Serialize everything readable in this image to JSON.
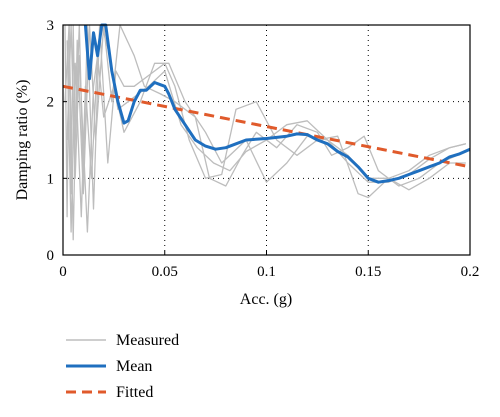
{
  "chart_data": {
    "type": "line",
    "xlabel": "Acc. (g)",
    "ylabel": "Damping ratio (%)",
    "xlim": [
      0,
      0.2
    ],
    "ylim": [
      0,
      3
    ],
    "xticks": [
      0,
      0.05,
      0.1,
      0.15,
      0.2
    ],
    "xtick_labels": [
      "0",
      "0.05",
      "0.1",
      "0.15",
      "0.2"
    ],
    "yticks": [
      0,
      1,
      2,
      3
    ],
    "ytick_labels": [
      "0",
      "1",
      "2",
      "3"
    ],
    "grid": "dotted",
    "legend_position": "below",
    "series": [
      {
        "name": "Measured",
        "style": "solid",
        "color": "#bdbdbd",
        "lines": [
          [
            [
              0.001,
              3.0
            ],
            [
              0.002,
              0.5
            ],
            [
              0.003,
              3.0
            ],
            [
              0.004,
              0.8
            ],
            [
              0.005,
              3.0
            ],
            [
              0.006,
              1.5
            ],
            [
              0.008,
              3.0
            ],
            [
              0.01,
              1.0
            ],
            [
              0.012,
              3.0
            ],
            [
              0.015,
              0.6
            ],
            [
              0.018,
              3.0
            ],
            [
              0.022,
              1.2
            ],
            [
              0.026,
              2.4
            ],
            [
              0.03,
              2.2
            ],
            [
              0.035,
              2.2
            ],
            [
              0.045,
              2.4
            ],
            [
              0.05,
              2.5
            ],
            [
              0.055,
              2.2
            ],
            [
              0.062,
              1.5
            ],
            [
              0.07,
              1.0
            ],
            [
              0.078,
              1.05
            ],
            [
              0.085,
              1.9
            ],
            [
              0.095,
              2.0
            ],
            [
              0.105,
              1.5
            ],
            [
              0.115,
              1.3
            ],
            [
              0.125,
              1.5
            ],
            [
              0.135,
              1.55
            ],
            [
              0.145,
              0.8
            ],
            [
              0.15,
              0.75
            ],
            [
              0.16,
              1.0
            ],
            [
              0.17,
              1.1
            ],
            [
              0.18,
              1.3
            ],
            [
              0.19,
              1.4
            ],
            [
              0.198,
              1.45
            ]
          ],
          [
            [
              0.002,
              2.8
            ],
            [
              0.004,
              0.3
            ],
            [
              0.006,
              2.5
            ],
            [
              0.009,
              0.5
            ],
            [
              0.011,
              2.2
            ],
            [
              0.014,
              1.0
            ],
            [
              0.017,
              2.6
            ],
            [
              0.02,
              1.8
            ],
            [
              0.025,
              2.2
            ],
            [
              0.03,
              1.6
            ],
            [
              0.038,
              2.0
            ],
            [
              0.045,
              2.5
            ],
            [
              0.052,
              2.5
            ],
            [
              0.06,
              2.0
            ],
            [
              0.07,
              1.6
            ],
            [
              0.078,
              1.2
            ],
            [
              0.09,
              1.5
            ],
            [
              0.1,
              0.95
            ],
            [
              0.11,
              1.2
            ],
            [
              0.12,
              1.55
            ],
            [
              0.13,
              1.5
            ],
            [
              0.14,
              1.3
            ],
            [
              0.15,
              1.0
            ],
            [
              0.16,
              1.0
            ],
            [
              0.17,
              0.85
            ],
            [
              0.18,
              1.0
            ],
            [
              0.19,
              1.2
            ],
            [
              0.198,
              1.2
            ]
          ],
          [
            [
              0.001,
              2.0
            ],
            [
              0.003,
              3.0
            ],
            [
              0.005,
              0.2
            ],
            [
              0.007,
              2.8
            ],
            [
              0.01,
              0.8
            ],
            [
              0.013,
              3.0
            ],
            [
              0.016,
              1.5
            ],
            [
              0.02,
              3.0
            ],
            [
              0.024,
              2.0
            ],
            [
              0.028,
              3.0
            ],
            [
              0.035,
              2.6
            ],
            [
              0.04,
              2.2
            ],
            [
              0.048,
              2.1
            ],
            [
              0.055,
              2.0
            ],
            [
              0.065,
              1.8
            ],
            [
              0.072,
              1.0
            ],
            [
              0.08,
              0.9
            ],
            [
              0.088,
              1.3
            ],
            [
              0.095,
              1.6
            ],
            [
              0.105,
              1.4
            ],
            [
              0.115,
              1.7
            ],
            [
              0.125,
              1.6
            ],
            [
              0.132,
              1.3
            ],
            [
              0.14,
              1.4
            ],
            [
              0.148,
              1.55
            ],
            [
              0.155,
              1.1
            ],
            [
              0.165,
              0.9
            ],
            [
              0.175,
              1.0
            ],
            [
              0.185,
              1.2
            ],
            [
              0.198,
              1.35
            ]
          ],
          [
            [
              0.002,
              1.5
            ],
            [
              0.004,
              3.0
            ],
            [
              0.006,
              1.0
            ],
            [
              0.008,
              2.6
            ],
            [
              0.012,
              0.3
            ],
            [
              0.015,
              2.2
            ],
            [
              0.019,
              3.0
            ],
            [
              0.023,
              2.6
            ],
            [
              0.027,
              1.9
            ],
            [
              0.032,
              2.0
            ],
            [
              0.042,
              2.2
            ],
            [
              0.05,
              2.4
            ],
            [
              0.058,
              1.7
            ],
            [
              0.066,
              1.4
            ],
            [
              0.074,
              1.2
            ],
            [
              0.082,
              1.1
            ],
            [
              0.09,
              1.35
            ],
            [
              0.1,
              1.5
            ],
            [
              0.11,
              1.7
            ],
            [
              0.12,
              1.75
            ],
            [
              0.13,
              1.5
            ],
            [
              0.14,
              1.2
            ],
            [
              0.15,
              0.95
            ],
            [
              0.16,
              0.95
            ],
            [
              0.17,
              1.05
            ],
            [
              0.18,
              1.25
            ],
            [
              0.19,
              1.4
            ],
            [
              0.198,
              1.45
            ]
          ]
        ]
      },
      {
        "name": "Mean",
        "style": "solid",
        "color": "#1f6fbf",
        "points": [
          [
            0.011,
            3.0
          ],
          [
            0.013,
            2.3
          ],
          [
            0.015,
            2.9
          ],
          [
            0.017,
            2.6
          ],
          [
            0.019,
            3.0
          ],
          [
            0.021,
            3.0
          ],
          [
            0.024,
            2.4
          ],
          [
            0.027,
            2.0
          ],
          [
            0.03,
            1.72
          ],
          [
            0.032,
            1.75
          ],
          [
            0.035,
            2.0
          ],
          [
            0.038,
            2.15
          ],
          [
            0.041,
            2.15
          ],
          [
            0.045,
            2.25
          ],
          [
            0.048,
            2.22
          ],
          [
            0.05,
            2.2
          ],
          [
            0.052,
            2.1
          ],
          [
            0.055,
            1.9
          ],
          [
            0.06,
            1.7
          ],
          [
            0.065,
            1.5
          ],
          [
            0.07,
            1.42
          ],
          [
            0.075,
            1.38
          ],
          [
            0.08,
            1.4
          ],
          [
            0.085,
            1.45
          ],
          [
            0.09,
            1.5
          ],
          [
            0.1,
            1.52
          ],
          [
            0.11,
            1.55
          ],
          [
            0.115,
            1.58
          ],
          [
            0.12,
            1.57
          ],
          [
            0.125,
            1.5
          ],
          [
            0.13,
            1.45
          ],
          [
            0.135,
            1.35
          ],
          [
            0.14,
            1.28
          ],
          [
            0.145,
            1.15
          ],
          [
            0.15,
            1.0
          ],
          [
            0.155,
            0.95
          ],
          [
            0.16,
            0.97
          ],
          [
            0.165,
            1.0
          ],
          [
            0.17,
            1.05
          ],
          [
            0.175,
            1.1
          ],
          [
            0.18,
            1.15
          ],
          [
            0.185,
            1.2
          ],
          [
            0.19,
            1.28
          ],
          [
            0.195,
            1.32
          ],
          [
            0.2,
            1.38
          ]
        ]
      },
      {
        "name": "Fitted",
        "style": "dashed",
        "color": "#e05a2b",
        "points": [
          [
            0.0,
            2.2
          ],
          [
            0.2,
            1.15
          ]
        ]
      }
    ]
  }
}
